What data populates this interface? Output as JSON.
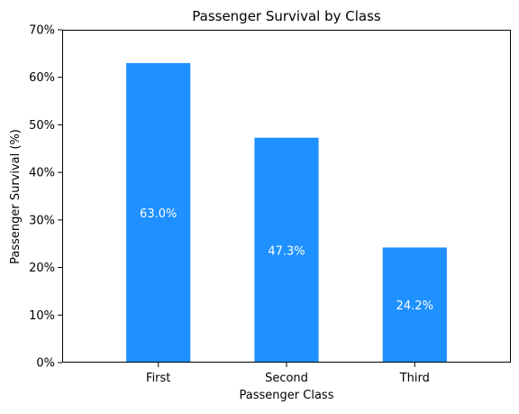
{
  "chart_data": {
    "type": "bar",
    "title": "Passenger Survival by Class",
    "xlabel": "Passenger Class",
    "ylabel": "Passenger Survival (%)",
    "categories": [
      "First",
      "Second",
      "Third"
    ],
    "values": [
      63.0,
      47.3,
      24.2
    ],
    "value_labels": [
      "63.0%",
      "47.3%",
      "24.2%"
    ],
    "ylim": [
      0,
      70
    ],
    "yticks": [
      0,
      10,
      20,
      30,
      40,
      50,
      60,
      70
    ],
    "ytick_labels": [
      "0%",
      "10%",
      "20%",
      "30%",
      "40%",
      "50%",
      "60%",
      "70%"
    ],
    "grid": false,
    "bar_color": "#1e90ff",
    "label_color": "#ffffff"
  }
}
